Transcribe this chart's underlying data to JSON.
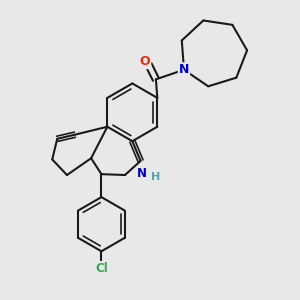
{
  "background_color": "#e8e8e8",
  "bond_color": "#1a1a1a",
  "atom_colors": {
    "O": "#ff2200",
    "N": "#0000cc",
    "Cl": "#33aa55",
    "H": "#44aaaa",
    "C": "#1a1a1a"
  },
  "figsize": [
    3.0,
    3.0
  ],
  "dpi": 100,
  "lw": 1.5,
  "lw_inner": 1.2
}
